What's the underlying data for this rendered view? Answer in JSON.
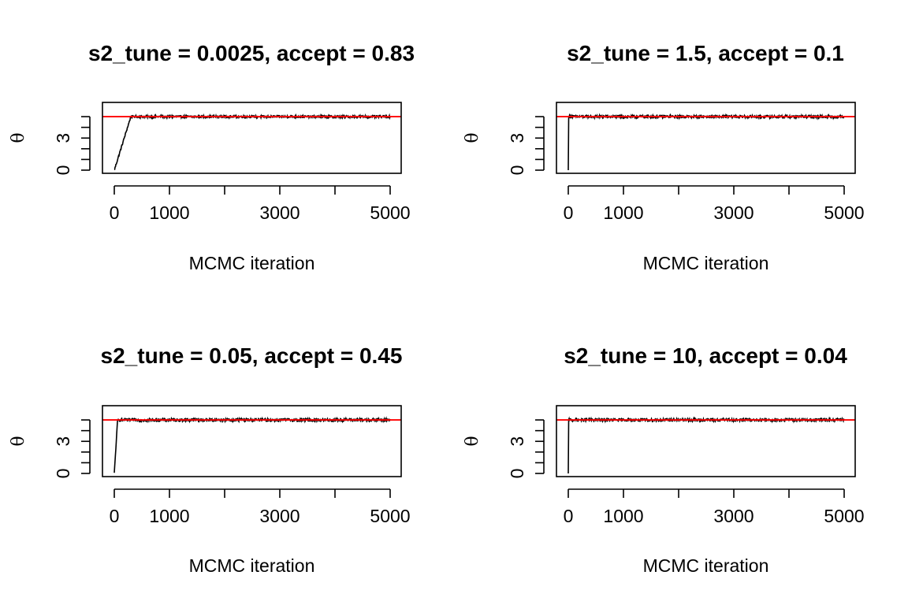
{
  "chart_data": [
    {
      "type": "line",
      "title": "s2_tune = 0.0025, accept = 0.83",
      "xlabel": "MCMC iteration",
      "ylabel": "θ",
      "xlim": [
        0,
        5000
      ],
      "ylim": [
        0,
        5.3
      ],
      "x_ticks": [
        0,
        1000,
        2000,
        3000,
        4000,
        5000
      ],
      "x_tick_labels": [
        "0",
        "1000",
        "",
        "3000",
        "",
        "5000"
      ],
      "y_ticks": [
        0,
        1,
        2,
        3,
        4,
        5
      ],
      "y_tick_labels": [
        "0",
        "",
        "",
        "3",
        "",
        ""
      ],
      "reference_line": {
        "y": 5,
        "color": "#ff0000"
      },
      "trace": {
        "start": 0,
        "burnin": 300,
        "noise": 0.1,
        "color": "#000000"
      }
    },
    {
      "type": "line",
      "title": "s2_tune = 1.5, accept = 0.1",
      "xlabel": "MCMC iteration",
      "ylabel": "θ",
      "xlim": [
        0,
        5000
      ],
      "ylim": [
        0,
        5.3
      ],
      "x_ticks": [
        0,
        1000,
        2000,
        3000,
        4000,
        5000
      ],
      "x_tick_labels": [
        "0",
        "1000",
        "",
        "3000",
        "",
        "5000"
      ],
      "y_ticks": [
        0,
        1,
        2,
        3,
        4,
        5
      ],
      "y_tick_labels": [
        "0",
        "",
        "",
        "3",
        "",
        ""
      ],
      "reference_line": {
        "y": 5,
        "color": "#ff0000"
      },
      "trace": {
        "start": 0,
        "burnin": 5,
        "noise": 0.12,
        "color": "#000000"
      }
    },
    {
      "type": "line",
      "title": "s2_tune = 0.05, accept = 0.45",
      "xlabel": "MCMC iteration",
      "ylabel": "θ",
      "xlim": [
        0,
        5000
      ],
      "ylim": [
        0,
        5.3
      ],
      "x_ticks": [
        0,
        1000,
        2000,
        3000,
        4000,
        5000
      ],
      "x_tick_labels": [
        "0",
        "1000",
        "",
        "3000",
        "",
        "5000"
      ],
      "y_ticks": [
        0,
        1,
        2,
        3,
        4,
        5
      ],
      "y_tick_labels": [
        "0",
        "",
        "",
        "3",
        "",
        ""
      ],
      "reference_line": {
        "y": 5,
        "color": "#ff0000"
      },
      "trace": {
        "start": 0,
        "burnin": 60,
        "noise": 0.14,
        "color": "#000000"
      }
    },
    {
      "type": "line",
      "title": "s2_tune = 10, accept = 0.04",
      "xlabel": "MCMC iteration",
      "ylabel": "θ",
      "xlim": [
        0,
        5000
      ],
      "ylim": [
        0,
        5.3
      ],
      "x_ticks": [
        0,
        1000,
        2000,
        3000,
        4000,
        5000
      ],
      "x_tick_labels": [
        "0",
        "1000",
        "",
        "3000",
        "",
        "5000"
      ],
      "y_ticks": [
        0,
        1,
        2,
        3,
        4,
        5
      ],
      "y_tick_labels": [
        "0",
        "",
        "",
        "3",
        "",
        ""
      ],
      "reference_line": {
        "y": 5,
        "color": "#ff0000"
      },
      "trace": {
        "start": 0,
        "burnin": 3,
        "noise": 0.12,
        "color": "#000000"
      }
    }
  ]
}
